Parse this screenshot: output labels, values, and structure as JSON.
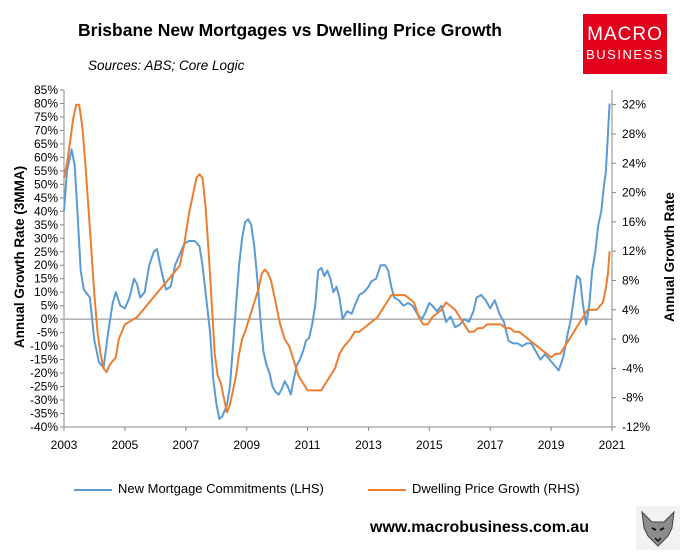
{
  "header": {
    "title": "Brisbane New Mortgages vs Dwelling Price Growth",
    "sources": "Sources: ABS; Core Logic"
  },
  "logo": {
    "line1": "MACRO",
    "line2": "BUSINESS",
    "color": "#e3001b"
  },
  "footer": {
    "website": "www.macrobusiness.com.au"
  },
  "colors": {
    "series1": "#5b9bd5",
    "series2": "#ed7d31"
  },
  "chart_data": {
    "type": "line",
    "title": "Brisbane New Mortgages vs Dwelling Price Growth",
    "subtitle": "Sources: ABS; Core Logic",
    "xlabel": "",
    "ylabel": "Annual Growth Rate (3MMA)",
    "y2label": "Annual Growth Rate",
    "xlim": [
      2003,
      2021
    ],
    "ylim": [
      -40,
      85
    ],
    "y2lim": [
      -12,
      34
    ],
    "xticks": [
      "2003",
      "2005",
      "2007",
      "2009",
      "2011",
      "2013",
      "2015",
      "2017",
      "2019",
      "2021"
    ],
    "yticks": [
      "-40%",
      "-35%",
      "-30%",
      "-25%",
      "-20%",
      "-15%",
      "-10%",
      "-5%",
      "0%",
      "5%",
      "10%",
      "15%",
      "20%",
      "25%",
      "30%",
      "35%",
      "40%",
      "45%",
      "50%",
      "55%",
      "60%",
      "65%",
      "70%",
      "75%",
      "80%",
      "85%"
    ],
    "y2ticks": [
      "-12%",
      "-8%",
      "-4%",
      "0%",
      "4%",
      "8%",
      "12%",
      "16%",
      "20%",
      "24%",
      "28%",
      "32%"
    ],
    "grid": false,
    "legend_position": "bottom",
    "series": [
      {
        "name": "New Mortgage Commitments (LHS)",
        "axis": "left",
        "points": [
          [
            2003.0,
            40
          ],
          [
            2003.1,
            55
          ],
          [
            2003.25,
            63
          ],
          [
            2003.35,
            57
          ],
          [
            2003.45,
            38
          ],
          [
            2003.55,
            18
          ],
          [
            2003.65,
            11
          ],
          [
            2003.85,
            8
          ],
          [
            2004.0,
            -8
          ],
          [
            2004.15,
            -16
          ],
          [
            2004.3,
            -18
          ],
          [
            2004.45,
            -5
          ],
          [
            2004.6,
            6
          ],
          [
            2004.7,
            10
          ],
          [
            2004.85,
            5
          ],
          [
            2005.0,
            4
          ],
          [
            2005.15,
            8
          ],
          [
            2005.3,
            15
          ],
          [
            2005.4,
            13
          ],
          [
            2005.5,
            8
          ],
          [
            2005.65,
            10
          ],
          [
            2005.8,
            20
          ],
          [
            2005.95,
            25
          ],
          [
            2006.05,
            26
          ],
          [
            2006.2,
            18
          ],
          [
            2006.35,
            11
          ],
          [
            2006.5,
            12
          ],
          [
            2006.65,
            20
          ],
          [
            2006.8,
            24
          ],
          [
            2006.95,
            28
          ],
          [
            2007.1,
            29
          ],
          [
            2007.3,
            29
          ],
          [
            2007.45,
            27
          ],
          [
            2007.55,
            20
          ],
          [
            2007.7,
            5
          ],
          [
            2007.8,
            -5
          ],
          [
            2007.9,
            -22
          ],
          [
            2008.0,
            -31
          ],
          [
            2008.1,
            -37
          ],
          [
            2008.2,
            -36
          ],
          [
            2008.35,
            -32
          ],
          [
            2008.45,
            -25
          ],
          [
            2008.55,
            -10
          ],
          [
            2008.65,
            5
          ],
          [
            2008.75,
            20
          ],
          [
            2008.85,
            30
          ],
          [
            2008.95,
            36
          ],
          [
            2009.05,
            37
          ],
          [
            2009.15,
            35
          ],
          [
            2009.25,
            27
          ],
          [
            2009.35,
            15
          ],
          [
            2009.45,
            0
          ],
          [
            2009.55,
            -12
          ],
          [
            2009.65,
            -17
          ],
          [
            2009.75,
            -20
          ],
          [
            2009.85,
            -25
          ],
          [
            2009.95,
            -27
          ],
          [
            2010.05,
            -28
          ],
          [
            2010.15,
            -26
          ],
          [
            2010.25,
            -23
          ],
          [
            2010.35,
            -25
          ],
          [
            2010.45,
            -28
          ],
          [
            2010.55,
            -22
          ],
          [
            2010.65,
            -17
          ],
          [
            2010.75,
            -15
          ],
          [
            2010.85,
            -12
          ],
          [
            2010.95,
            -8
          ],
          [
            2011.05,
            -7
          ],
          [
            2011.15,
            -2
          ],
          [
            2011.25,
            5
          ],
          [
            2011.35,
            18
          ],
          [
            2011.45,
            19
          ],
          [
            2011.55,
            16
          ],
          [
            2011.65,
            18
          ],
          [
            2011.75,
            15
          ],
          [
            2011.85,
            10
          ],
          [
            2011.95,
            12
          ],
          [
            2012.05,
            8
          ],
          [
            2012.15,
            0
          ],
          [
            2012.3,
            3
          ],
          [
            2012.45,
            2
          ],
          [
            2012.55,
            5
          ],
          [
            2012.7,
            9
          ],
          [
            2012.85,
            10
          ],
          [
            2013.0,
            12
          ],
          [
            2013.1,
            14
          ],
          [
            2013.25,
            15
          ],
          [
            2013.4,
            20
          ],
          [
            2013.55,
            20
          ],
          [
            2013.65,
            18
          ],
          [
            2013.75,
            12
          ],
          [
            2013.85,
            8
          ],
          [
            2014.0,
            7
          ],
          [
            2014.15,
            5
          ],
          [
            2014.3,
            6
          ],
          [
            2014.45,
            5
          ],
          [
            2014.6,
            2
          ],
          [
            2014.75,
            0
          ],
          [
            2014.85,
            2
          ],
          [
            2015.0,
            6
          ],
          [
            2015.1,
            5
          ],
          [
            2015.25,
            3
          ],
          [
            2015.4,
            5
          ],
          [
            2015.55,
            -1
          ],
          [
            2015.7,
            1
          ],
          [
            2015.85,
            -3
          ],
          [
            2016.0,
            -2
          ],
          [
            2016.15,
            0
          ],
          [
            2016.3,
            -1
          ],
          [
            2016.45,
            3
          ],
          [
            2016.55,
            8
          ],
          [
            2016.7,
            9
          ],
          [
            2016.85,
            7
          ],
          [
            2017.0,
            4
          ],
          [
            2017.15,
            7
          ],
          [
            2017.3,
            2
          ],
          [
            2017.45,
            -1
          ],
          [
            2017.6,
            -8
          ],
          [
            2017.75,
            -9
          ],
          [
            2017.9,
            -9
          ],
          [
            2018.05,
            -10
          ],
          [
            2018.2,
            -9
          ],
          [
            2018.35,
            -9
          ],
          [
            2018.5,
            -12
          ],
          [
            2018.65,
            -15
          ],
          [
            2018.8,
            -13
          ],
          [
            2018.95,
            -15
          ],
          [
            2019.1,
            -17
          ],
          [
            2019.25,
            -19
          ],
          [
            2019.4,
            -14
          ],
          [
            2019.55,
            -5
          ],
          [
            2019.65,
            0
          ],
          [
            2019.75,
            8
          ],
          [
            2019.85,
            16
          ],
          [
            2019.95,
            15
          ],
          [
            2020.05,
            5
          ],
          [
            2020.15,
            -2
          ],
          [
            2020.25,
            5
          ],
          [
            2020.35,
            18
          ],
          [
            2020.45,
            25
          ],
          [
            2020.55,
            35
          ],
          [
            2020.65,
            40
          ],
          [
            2020.72,
            48
          ],
          [
            2020.8,
            55
          ],
          [
            2020.85,
            65
          ],
          [
            2020.92,
            80
          ]
        ]
      },
      {
        "name": "Dwelling Price Growth (RHS)",
        "axis": "right",
        "points": [
          [
            2003.0,
            22
          ],
          [
            2003.1,
            24
          ],
          [
            2003.2,
            27
          ],
          [
            2003.3,
            30
          ],
          [
            2003.4,
            32
          ],
          [
            2003.5,
            32
          ],
          [
            2003.6,
            29
          ],
          [
            2003.7,
            24
          ],
          [
            2003.8,
            18
          ],
          [
            2003.9,
            12
          ],
          [
            2004.0,
            6
          ],
          [
            2004.1,
            1
          ],
          [
            2004.2,
            -2
          ],
          [
            2004.3,
            -4
          ],
          [
            2004.4,
            -4.5
          ],
          [
            2004.5,
            -3.5
          ],
          [
            2004.6,
            -3
          ],
          [
            2004.7,
            -2.5
          ],
          [
            2004.8,
            0
          ],
          [
            2004.9,
            1
          ],
          [
            2005.0,
            2
          ],
          [
            2005.2,
            2.5
          ],
          [
            2005.4,
            3
          ],
          [
            2005.6,
            4
          ],
          [
            2005.8,
            5
          ],
          [
            2006.0,
            6
          ],
          [
            2006.2,
            7
          ],
          [
            2006.4,
            8
          ],
          [
            2006.6,
            9
          ],
          [
            2006.8,
            10
          ],
          [
            2006.95,
            13
          ],
          [
            2007.1,
            17
          ],
          [
            2007.25,
            20
          ],
          [
            2007.35,
            22
          ],
          [
            2007.45,
            22.5
          ],
          [
            2007.55,
            22
          ],
          [
            2007.65,
            18
          ],
          [
            2007.75,
            12
          ],
          [
            2007.85,
            5
          ],
          [
            2007.95,
            -2
          ],
          [
            2008.05,
            -5
          ],
          [
            2008.15,
            -6
          ],
          [
            2008.25,
            -8
          ],
          [
            2008.35,
            -10
          ],
          [
            2008.45,
            -9
          ],
          [
            2008.55,
            -7
          ],
          [
            2008.65,
            -5
          ],
          [
            2008.75,
            -2
          ],
          [
            2008.85,
            0
          ],
          [
            2008.95,
            1
          ],
          [
            2009.1,
            3
          ],
          [
            2009.25,
            5
          ],
          [
            2009.4,
            7
          ],
          [
            2009.5,
            9
          ],
          [
            2009.6,
            9.5
          ],
          [
            2009.7,
            9
          ],
          [
            2009.8,
            8
          ],
          [
            2009.9,
            6
          ],
          [
            2010.0,
            4
          ],
          [
            2010.1,
            2
          ],
          [
            2010.25,
            0
          ],
          [
            2010.4,
            -1
          ],
          [
            2010.55,
            -3
          ],
          [
            2010.7,
            -5
          ],
          [
            2010.85,
            -6
          ],
          [
            2011.0,
            -7
          ],
          [
            2011.15,
            -7
          ],
          [
            2011.3,
            -7
          ],
          [
            2011.45,
            -7
          ],
          [
            2011.6,
            -6
          ],
          [
            2011.75,
            -5
          ],
          [
            2011.9,
            -4
          ],
          [
            2012.05,
            -2
          ],
          [
            2012.2,
            -1
          ],
          [
            2012.4,
            0
          ],
          [
            2012.55,
            1
          ],
          [
            2012.7,
            1
          ],
          [
            2012.85,
            1.5
          ],
          [
            2013.0,
            2
          ],
          [
            2013.15,
            2.5
          ],
          [
            2013.3,
            3
          ],
          [
            2013.45,
            4
          ],
          [
            2013.6,
            5
          ],
          [
            2013.75,
            6
          ],
          [
            2013.9,
            6
          ],
          [
            2014.05,
            6
          ],
          [
            2014.2,
            6
          ],
          [
            2014.35,
            5.5
          ],
          [
            2014.5,
            5
          ],
          [
            2014.65,
            3
          ],
          [
            2014.8,
            2
          ],
          [
            2014.95,
            2
          ],
          [
            2015.1,
            3
          ],
          [
            2015.25,
            3.5
          ],
          [
            2015.4,
            4
          ],
          [
            2015.55,
            5
          ],
          [
            2015.7,
            4.5
          ],
          [
            2015.85,
            4
          ],
          [
            2016.0,
            3
          ],
          [
            2016.15,
            2
          ],
          [
            2016.3,
            1
          ],
          [
            2016.45,
            1
          ],
          [
            2016.6,
            1.5
          ],
          [
            2016.75,
            1.5
          ],
          [
            2016.9,
            2
          ],
          [
            2017.05,
            2
          ],
          [
            2017.2,
            2
          ],
          [
            2017.35,
            2
          ],
          [
            2017.5,
            1.5
          ],
          [
            2017.65,
            1.5
          ],
          [
            2017.8,
            1
          ],
          [
            2017.95,
            1
          ],
          [
            2018.1,
            0.5
          ],
          [
            2018.25,
            0
          ],
          [
            2018.4,
            -0.5
          ],
          [
            2018.55,
            -1
          ],
          [
            2018.7,
            -1.5
          ],
          [
            2018.85,
            -2
          ],
          [
            2019.0,
            -2.5
          ],
          [
            2019.15,
            -2
          ],
          [
            2019.3,
            -2
          ],
          [
            2019.45,
            -1
          ],
          [
            2019.6,
            0
          ],
          [
            2019.75,
            1
          ],
          [
            2019.9,
            2
          ],
          [
            2020.05,
            3
          ],
          [
            2020.2,
            4
          ],
          [
            2020.35,
            4
          ],
          [
            2020.5,
            4
          ],
          [
            2020.6,
            4.5
          ],
          [
            2020.7,
            5
          ],
          [
            2020.8,
            7
          ],
          [
            2020.87,
            9
          ],
          [
            2020.92,
            12
          ]
        ]
      }
    ]
  }
}
